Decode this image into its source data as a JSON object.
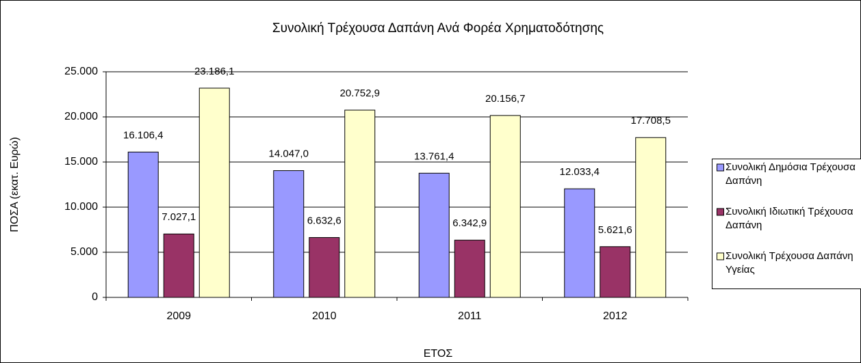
{
  "chart_data": {
    "type": "bar",
    "title": "Συνολική Τρέχουσα Δαπάνη Ανά Φορέα Χρηματοδότησης",
    "x_label": "ΕΤΟΣ",
    "y_label": "ΠΟΣΑ (εκατ. Ευρώ)",
    "categories": [
      "2009",
      "2010",
      "2011",
      "2012"
    ],
    "series": [
      {
        "name": "Συνολική Δημόσια Τρέχουσα Δαπάνη",
        "color": "#9999ff",
        "values": [
          16106.4,
          14047.0,
          13761.4,
          12033.4
        ],
        "value_labels": [
          "16.106,4",
          "14.047,0",
          "13.761,4",
          "12.033,4"
        ]
      },
      {
        "name": "Συνολική Ιδιωτική Τρέχουσα Δαπάνη",
        "color": "#993366",
        "values": [
          7027.1,
          6632.6,
          6342.9,
          5621.6
        ],
        "value_labels": [
          "7.027,1",
          "6.632,6",
          "6.342,9",
          "5.621,6"
        ]
      },
      {
        "name": "Συνολική Τρέχουσα Δαπάνη Υγείας",
        "color": "#ffffcc",
        "values": [
          23186.1,
          20752.9,
          20156.7,
          17708.5
        ],
        "value_labels": [
          "23.186,1",
          "20.752,9",
          "20.156,7",
          "17.708,5"
        ]
      }
    ],
    "ylim": [
      0,
      25000
    ],
    "yticks": [
      0,
      {
        "value": 5000,
        "label": "5.000"
      },
      {
        "value": 10000,
        "label": "10.000"
      },
      {
        "value": 15000,
        "label": "15.000"
      },
      {
        "value": 20000,
        "label": "20.000"
      },
      {
        "value": 25000,
        "label": "25.000"
      }
    ],
    "grid": true,
    "legend": "right"
  }
}
